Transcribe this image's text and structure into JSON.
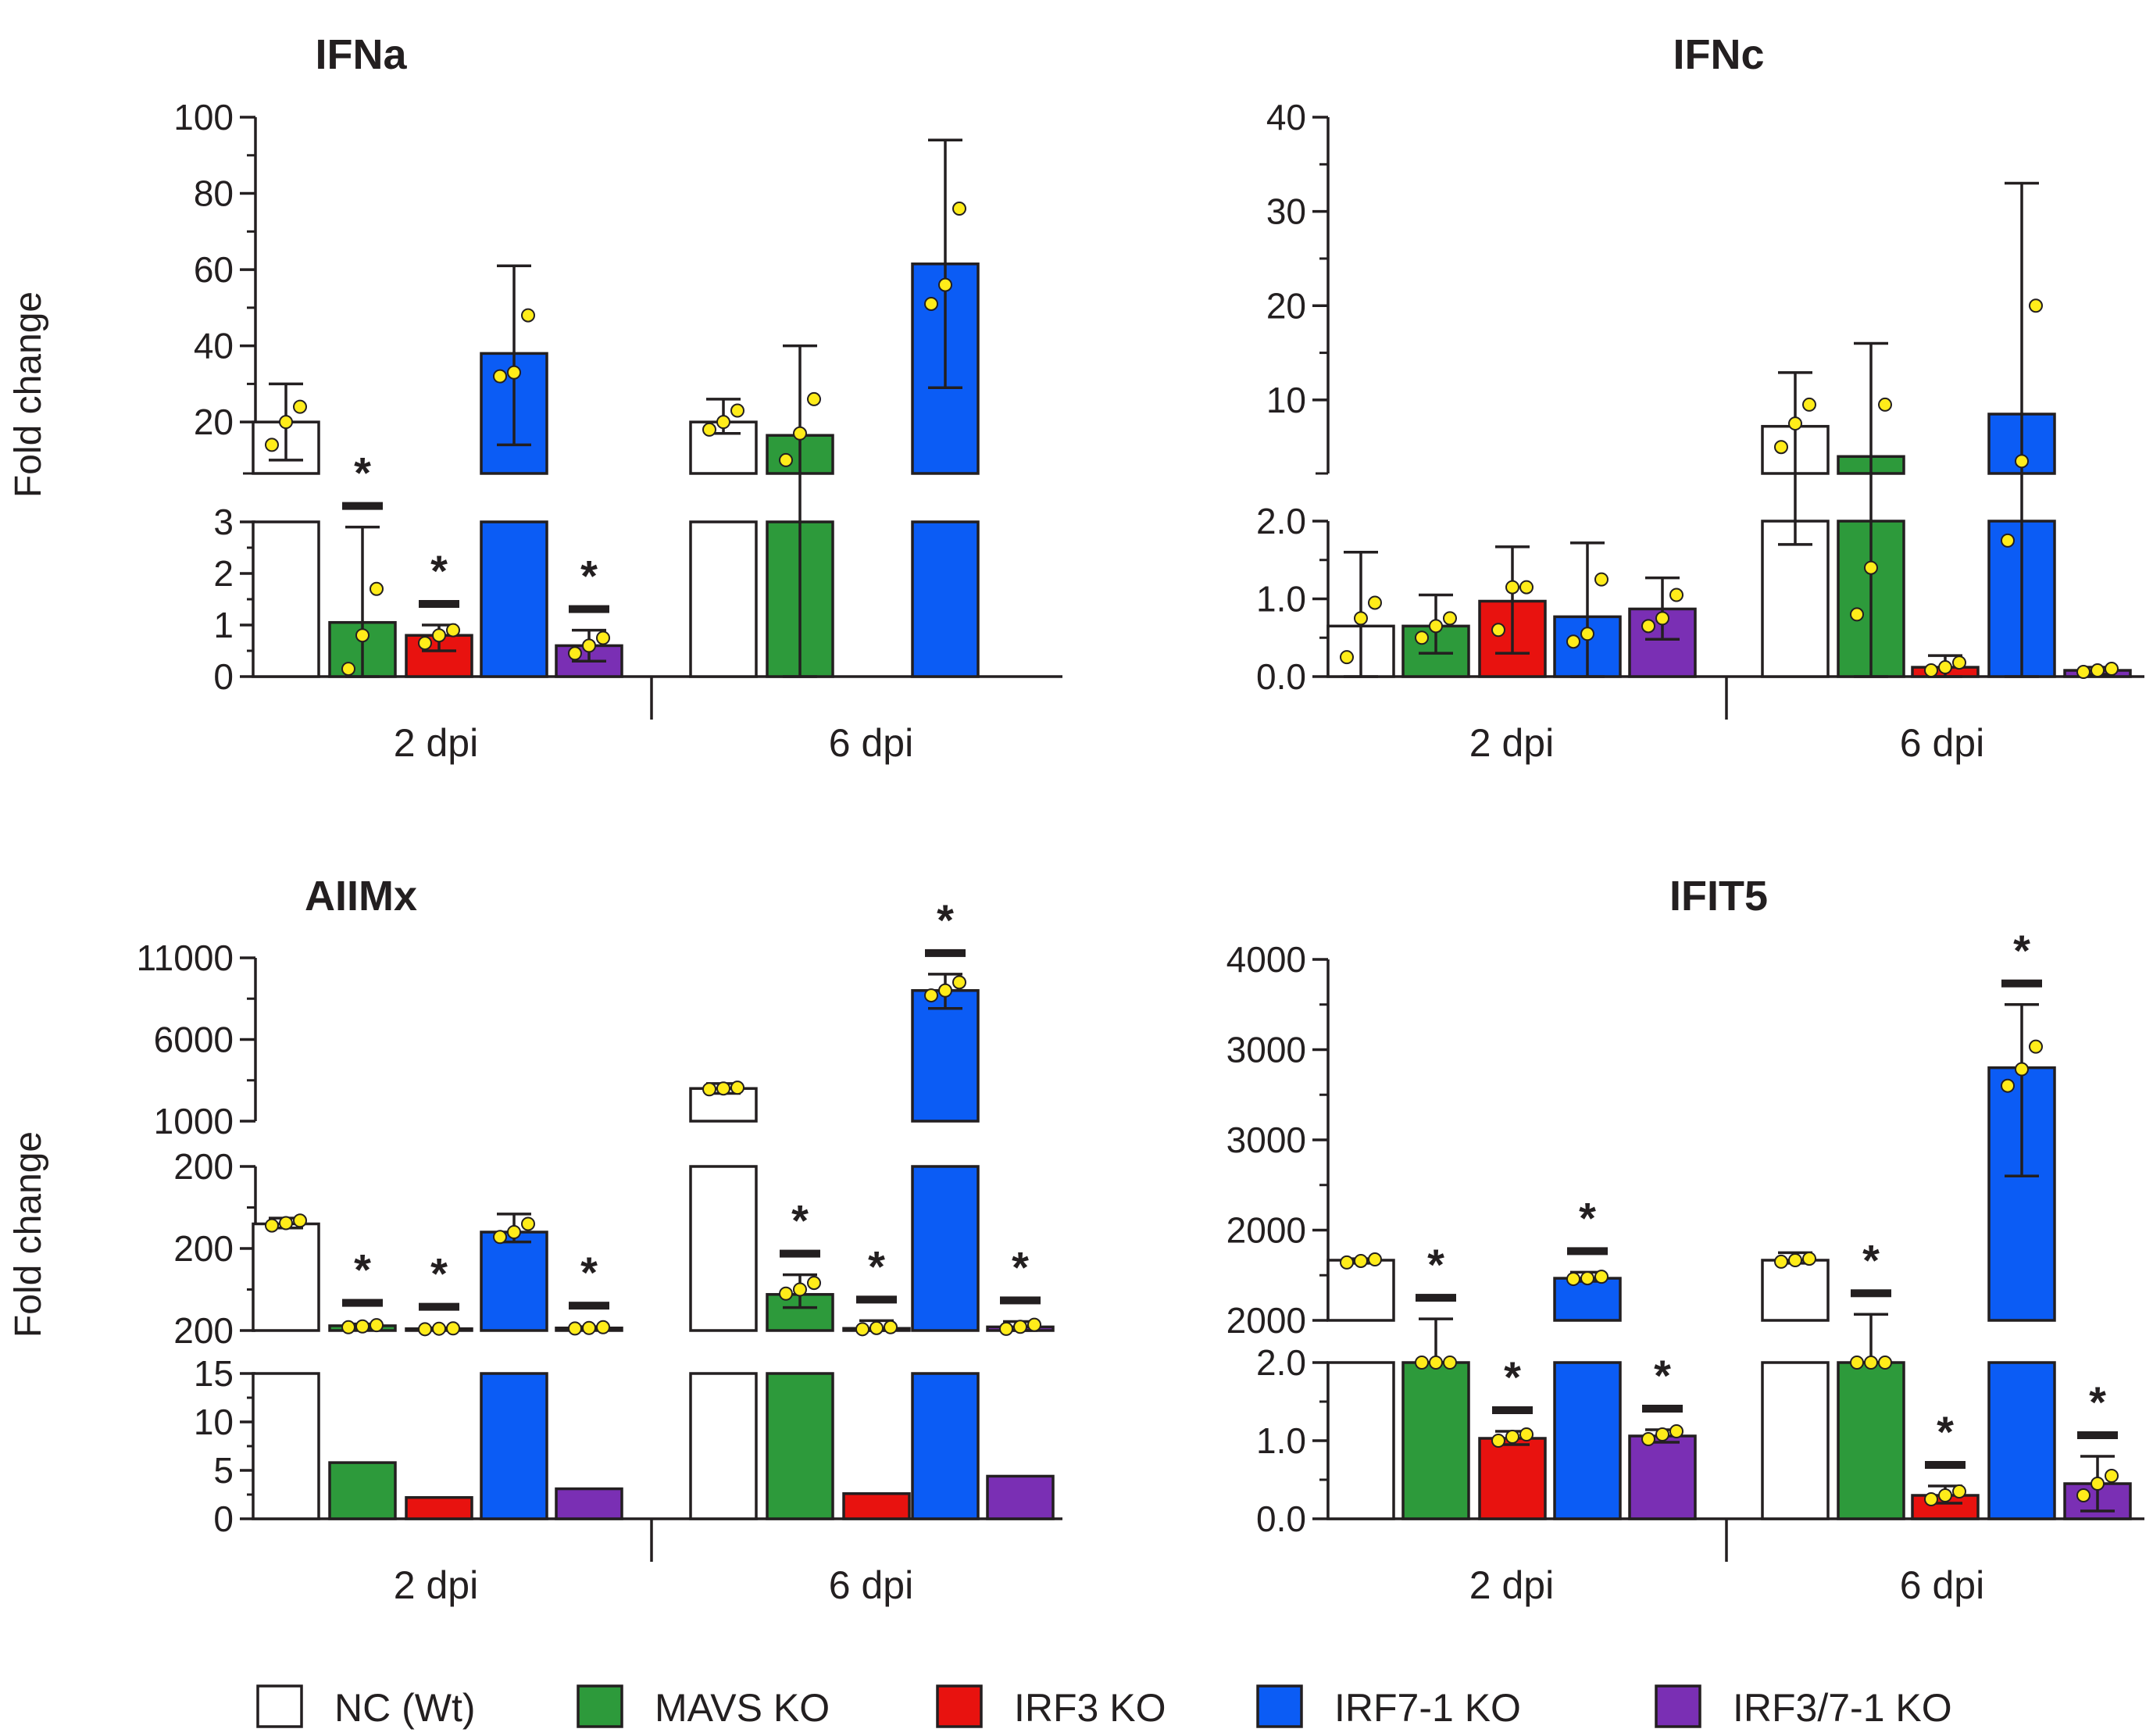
{
  "colors": {
    "NC (Wt)": "#ffffff",
    "MAVS KO": "#2d9a3b",
    "IRF3 KO": "#e8120f",
    "IRF7-1 KO": "#0b5cf5",
    "IRF3/7-1 KO": "#7a2fb4",
    "axis": "#231f20",
    "dot": "#ffec1a"
  },
  "legend": [
    "NC (Wt)",
    "MAVS KO",
    "IRF3 KO",
    "IRF7-1 KO",
    "IRF3/7-1 KO"
  ],
  "chart_data": [
    {
      "type": "bar",
      "title": "IFNa",
      "ylabel": "Fold change",
      "categories": [
        "2 dpi",
        "6 dpi"
      ],
      "y_segments": [
        {
          "range": [
            0,
            3
          ],
          "ticks": [
            "0",
            "1",
            "2",
            "3"
          ]
        },
        {
          "range": [
            6.5,
            100
          ],
          "ticks": [
            "20",
            "40",
            "60",
            "80",
            "100"
          ]
        }
      ],
      "series": [
        {
          "name": "NC (Wt)",
          "values": [
            20,
            20
          ],
          "errors": [
            [
              10,
              30
            ],
            [
              17,
              26
            ]
          ],
          "points": [
            [
              14,
              20,
              24
            ],
            [
              18,
              20,
              23
            ]
          ],
          "significant": [
            false,
            false
          ]
        },
        {
          "name": "MAVS KO",
          "values": [
            1.05,
            16.5
          ],
          "errors": [
            [
              0,
              2.9
            ],
            [
              0,
              40
            ]
          ],
          "points": [
            [
              0.15,
              0.8,
              1.7
            ],
            [
              10,
              17,
              26
            ]
          ],
          "significant": [
            true,
            false
          ]
        },
        {
          "name": "IRF3 KO",
          "values": [
            0.8,
            null
          ],
          "errors": [
            [
              0.5,
              1.0
            ],
            null
          ],
          "points": [
            [
              0.65,
              0.8,
              0.9
            ],
            null
          ],
          "significant": [
            true,
            false
          ]
        },
        {
          "name": "IRF7-1 KO",
          "values": [
            38,
            61.5
          ],
          "errors": [
            [
              14,
              61
            ],
            [
              29,
              94
            ]
          ],
          "points": [
            [
              32,
              33,
              48
            ],
            [
              51,
              56,
              76
            ]
          ],
          "significant": [
            false,
            false
          ]
        },
        {
          "name": "IRF3/7-1 KO",
          "values": [
            0.6,
            null
          ],
          "errors": [
            [
              0.3,
              0.9
            ],
            null
          ],
          "points": [
            [
              0.45,
              0.6,
              0.75
            ],
            null
          ],
          "significant": [
            true,
            false
          ]
        }
      ]
    },
    {
      "type": "bar",
      "title": "IFNc",
      "ylabel": "",
      "categories": [
        "2 dpi",
        "6 dpi"
      ],
      "y_segments": [
        {
          "range": [
            0,
            2
          ],
          "ticks": [
            "0.0",
            "1.0",
            "2.0"
          ]
        },
        {
          "range": [
            2.2,
            40
          ],
          "ticks": [
            "10",
            "20",
            "30",
            "40"
          ]
        }
      ],
      "series": [
        {
          "name": "NC (Wt)",
          "values": [
            0.65,
            7.2
          ],
          "errors": [
            [
              0,
              1.6
            ],
            [
              1.7,
              12.9
            ]
          ],
          "points": [
            [
              0.25,
              0.75,
              0.95
            ],
            [
              5,
              7.5,
              9.5
            ]
          ],
          "significant": [
            false,
            false
          ]
        },
        {
          "name": "MAVS KO",
          "values": [
            0.65,
            4
          ],
          "errors": [
            [
              0.3,
              1.05
            ],
            [
              0,
              16
            ]
          ],
          "points": [
            [
              0.5,
              0.65,
              0.75
            ],
            [
              0.8,
              1.4,
              9.5
            ]
          ],
          "significant": [
            false,
            false
          ]
        },
        {
          "name": "IRF3 KO",
          "values": [
            0.97,
            0.12
          ],
          "errors": [
            [
              0.3,
              1.67
            ],
            [
              0,
              0.27
            ]
          ],
          "points": [
            [
              0.6,
              1.15,
              1.15
            ],
            [
              0.08,
              0.12,
              0.18
            ]
          ],
          "significant": [
            false,
            false
          ]
        },
        {
          "name": "IRF7-1 KO",
          "values": [
            0.77,
            8.5
          ],
          "errors": [
            [
              0,
              1.72
            ],
            [
              0,
              33
            ]
          ],
          "points": [
            [
              0.45,
              0.55,
              1.25
            ],
            [
              1.75,
              3.5,
              20
            ]
          ],
          "significant": [
            false,
            false
          ]
        },
        {
          "name": "IRF3/7-1 KO",
          "values": [
            0.87,
            0.08
          ],
          "errors": [
            [
              0.48,
              1.27
            ],
            [
              0.03,
              0.12
            ]
          ],
          "points": [
            [
              0.65,
              0.75,
              1.05
            ],
            [
              0.06,
              0.08,
              0.1
            ]
          ],
          "significant": [
            false,
            false
          ]
        }
      ]
    },
    {
      "type": "bar",
      "title": "AIIMx",
      "ylabel": "Fold change",
      "categories": [
        "2 dpi",
        "6 dpi"
      ],
      "y_segments": [
        {
          "range": [
            0,
            15
          ],
          "ticks": [
            "0",
            "5",
            "10",
            "15"
          ]
        },
        {
          "range": [
            0,
            200
          ],
          "ticks": [
            "200",
            "200",
            "200"
          ]
        },
        {
          "range": [
            1000,
            11000
          ],
          "ticks": [
            "1000",
            "6000",
            "11000"
          ]
        }
      ],
      "series": [
        {
          "name": "NC (Wt)",
          "values": [
            130,
            3000
          ],
          "errors": [
            [
              125,
              137
            ],
            [
              2700,
              3300
            ]
          ],
          "points": [
            [
              128,
              131,
              134
            ],
            [
              2950,
              3000,
              3050
            ]
          ],
          "significant": [
            false,
            false
          ]
        },
        {
          "name": "MAVS KO",
          "values": [
            5.8,
            44
          ],
          "errors": [
            [
              3.6,
              8
            ],
            [
              28,
              68
            ]
          ],
          "points": [
            [
              4,
              5,
              6.5
            ],
            [
              45,
              50,
              58
            ]
          ],
          "significant": [
            true,
            true
          ]
        },
        {
          "name": "IRF3 KO",
          "values": [
            2.2,
            2.6
          ],
          "errors": [
            [
              1.2,
              3.2
            ],
            [
              0,
              12
            ]
          ],
          "points": [
            [
              1.6,
              2.2,
              2.6
            ],
            [
              1.6,
              3,
              4
            ]
          ],
          "significant": [
            true,
            true
          ]
        },
        {
          "name": "IRF7-1 KO",
          "values": [
            120,
            9000
          ],
          "errors": [
            [
              108,
              142
            ],
            [
              7900,
              10000
            ]
          ],
          "points": [
            [
              114,
              120,
              130
            ],
            [
              8700,
              9000,
              9500
            ]
          ],
          "significant": [
            false,
            true
          ]
        },
        {
          "name": "IRF3/7-1 KO",
          "values": [
            3.1,
            4.4
          ],
          "errors": [
            [
              1.6,
              4.6
            ],
            [
              0,
              11
            ]
          ],
          "points": [
            [
              2.5,
              3.1,
              4
            ],
            [
              2,
              4.5,
              7
            ]
          ],
          "significant": [
            true,
            true
          ]
        }
      ]
    },
    {
      "type": "bar",
      "title": "IFIT5",
      "ylabel": "",
      "categories": [
        "2 dpi",
        "6 dpi"
      ],
      "y_segments": [
        {
          "range": [
            0,
            2
          ],
          "ticks": [
            "0.0",
            "1.0",
            "2.0"
          ]
        },
        {
          "range": [
            1600,
            4000
          ],
          "ticks": [
            "2000",
            "2000",
            "3000",
            "3000",
            "4000"
          ]
        }
      ],
      "series": [
        {
          "name": "NC (Wt)",
          "values": [
            2000,
            2000
          ],
          "errors": [
            [
              1980,
              2010
            ],
            [
              1980,
              2050
            ]
          ],
          "points": [
            [
              1985,
              1995,
              2005
            ],
            [
              1990,
              2000,
              2010
            ]
          ],
          "significant": [
            false,
            false
          ]
        },
        {
          "name": "MAVS KO",
          "values": [
            1500,
            1500
          ],
          "errors": [
            [
              1490,
              1610
            ],
            [
              1480,
              1640
            ]
          ],
          "points": [
            [
              1490,
              1495,
              1500
            ],
            [
              1510,
              1520,
              1530
            ]
          ],
          "significant": [
            true,
            true
          ]
        },
        {
          "name": "IRF3 KO",
          "values": [
            1.03,
            0.3
          ],
          "errors": [
            [
              0.95,
              1.12
            ],
            [
              0.2,
              0.42
            ]
          ],
          "points": [
            [
              1.0,
              1.05,
              1.08
            ],
            [
              0.25,
              0.3,
              0.35
            ]
          ],
          "significant": [
            true,
            true
          ]
        },
        {
          "name": "IRF7-1 KO",
          "values": [
            1880,
            3280
          ],
          "errors": [
            [
              1860,
              1920
            ],
            [
              2560,
              3700
            ]
          ],
          "points": [
            [
              1875,
              1880,
              1890
            ],
            [
              3160,
              3270,
              3420
            ]
          ],
          "significant": [
            true,
            true
          ]
        },
        {
          "name": "IRF3/7-1 KO",
          "values": [
            1.06,
            0.45
          ],
          "errors": [
            [
              0.98,
              1.14
            ],
            [
              0.1,
              0.8
            ]
          ],
          "points": [
            [
              1.02,
              1.08,
              1.12
            ],
            [
              0.3,
              0.45,
              0.55
            ]
          ],
          "significant": [
            true,
            true
          ]
        }
      ]
    }
  ]
}
